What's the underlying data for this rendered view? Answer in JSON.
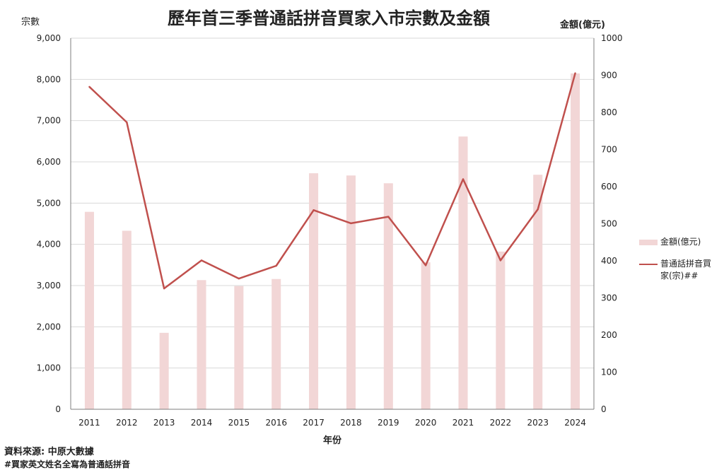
{
  "title": "歷年首三季普通話拼音買家入市宗數及金額",
  "y_left_title": "宗數",
  "y_right_title": "金額(億元)",
  "x_title": "年份",
  "source": "資料來源: 中原大數據",
  "footnote": "#買家英文姓名全寫為普通話拼音",
  "legend": {
    "bar_label": "金額(億元)",
    "line_label": "普通話拼音買家(宗)##"
  },
  "colors": {
    "bar": "#f2d6d6",
    "line": "#c0504d",
    "grid": "#d9d9d9",
    "axis": "#7f7f7f"
  },
  "chart_data": {
    "type": "bar+line",
    "categories": [
      "2011",
      "2012",
      "2013",
      "2014",
      "2015",
      "2016",
      "2017",
      "2018",
      "2019",
      "2020",
      "2021",
      "2022",
      "2023",
      "2024"
    ],
    "series": [
      {
        "name": "金額(億元)",
        "type": "bar",
        "axis": "right",
        "values": [
          532,
          481,
          206,
          348,
          332,
          351,
          636,
          630,
          609,
          396,
          735,
          425,
          632,
          905
        ]
      },
      {
        "name": "普通話拼音買家(宗)##",
        "type": "line",
        "axis": "left",
        "values": [
          7820,
          6960,
          2930,
          3610,
          3170,
          3480,
          4830,
          4510,
          4670,
          3490,
          5580,
          3610,
          4850,
          8150
        ]
      }
    ],
    "y_left": {
      "min": 0,
      "max": 9000,
      "ticks": [
        "0",
        "1,000",
        "2,000",
        "3,000",
        "4,000",
        "5,000",
        "6,000",
        "7,000",
        "8,000",
        "9,000"
      ]
    },
    "y_right": {
      "min": 0,
      "max": 1000,
      "ticks": [
        "0",
        "100",
        "200",
        "300",
        "400",
        "500",
        "600",
        "700",
        "800",
        "900",
        "1000"
      ]
    },
    "grid": true,
    "legend_position": "right"
  }
}
